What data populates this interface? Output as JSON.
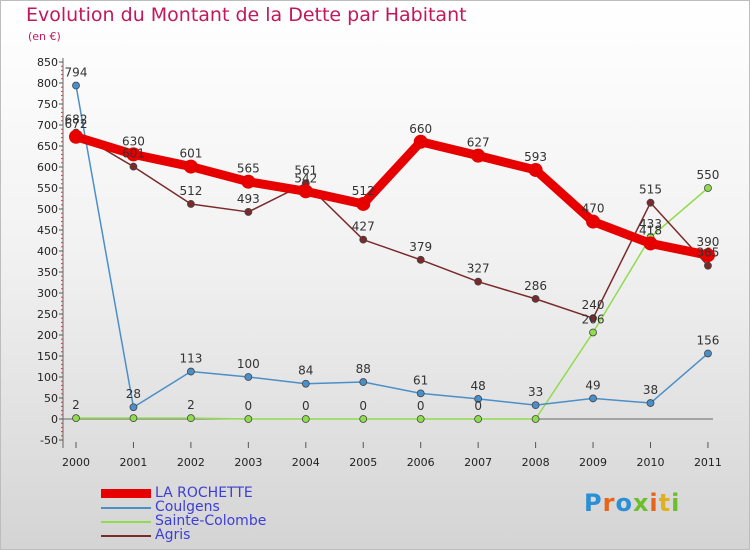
{
  "header": {
    "title": "Evolution du Montant de la Dette par Habitant",
    "subtitle": "(en €)"
  },
  "logo": {
    "text": "Proxiti",
    "letter_colors": [
      "#2b8fd6",
      "#e8641b",
      "#2b8fd6",
      "#6cbf2a",
      "#e8641b",
      "#e0b020",
      "#6cbf2a"
    ]
  },
  "chart_data": {
    "type": "line",
    "title": "Evolution du Montant de la Dette par Habitant",
    "subtitle": "(en €)",
    "x": [
      "2000",
      "2001",
      "2002",
      "2003",
      "2004",
      "2005",
      "2006",
      "2007",
      "2008",
      "2009",
      "2010",
      "2011"
    ],
    "ylim": [
      -50,
      850
    ],
    "yticks": [
      -50,
      0,
      50,
      100,
      150,
      200,
      250,
      300,
      350,
      400,
      450,
      500,
      550,
      600,
      650,
      700,
      750,
      800,
      850
    ],
    "grid": false,
    "legend": "bottom-left",
    "series": [
      {
        "name": "LA ROCHETTE",
        "color": "#e60000",
        "values": [
          672,
          630,
          601,
          565,
          542,
          512,
          660,
          627,
          593,
          470,
          418,
          390
        ],
        "labels": [
          "672",
          "630",
          "601",
          "565",
          "542",
          "512",
          "660",
          "627",
          "593",
          "470",
          "418",
          "390"
        ]
      },
      {
        "name": "Coulgens",
        "color": "#4a8fc9",
        "values": [
          794,
          28,
          113,
          100,
          84,
          88,
          61,
          48,
          33,
          49,
          38,
          156
        ],
        "labels": [
          "794",
          "28",
          "113",
          "100",
          "84",
          "88",
          "61",
          "48",
          "33",
          "49",
          "38",
          "156"
        ]
      },
      {
        "name": "Sainte-Colombe",
        "color": "#8fdc4c",
        "values": [
          2,
          2,
          2,
          0,
          0,
          0,
          0,
          0,
          0,
          206,
          433,
          550
        ],
        "labels": [
          "2",
          "",
          "2",
          "0",
          "0",
          "0",
          "0",
          "0",
          "",
          "206",
          "433",
          "550"
        ]
      },
      {
        "name": "Agris",
        "color": "#7a2a2a",
        "values": [
          682,
          601,
          512,
          493,
          561,
          427,
          379,
          327,
          286,
          240,
          515,
          365
        ],
        "labels": [
          "682",
          "601",
          "512",
          "493",
          "561",
          "427",
          "379",
          "327",
          "286",
          "240",
          "515",
          "365"
        ]
      }
    ]
  }
}
